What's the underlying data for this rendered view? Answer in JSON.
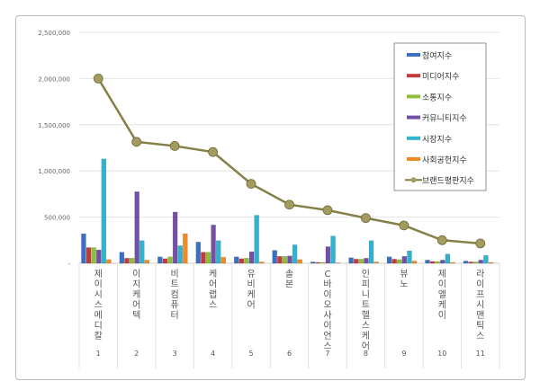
{
  "chart_data": {
    "type": "bar+line",
    "title": "",
    "categories": [
      "제이시스메디칼",
      "이지케어텍",
      "비트컴퓨터",
      "케어랩스",
      "유비케어",
      "솔본",
      "C바이오사이언스",
      "인피니트헬스케어",
      "뷰노",
      "제이엘케이",
      "라이프시맨틱스"
    ],
    "ranks": [
      "1",
      "2",
      "3",
      "4",
      "5",
      "6",
      "7",
      "8",
      "9",
      "10",
      "11"
    ],
    "ylim": [
      0,
      2500000
    ],
    "yticks": [
      0,
      500000,
      1000000,
      1500000,
      2000000,
      2500000
    ],
    "ytick_labels": [
      "-",
      "500,000",
      "1,000,000",
      "1,500,000",
      "2,000,000",
      "2,500,000"
    ],
    "grid": true,
    "legend_position": "top-right",
    "series": [
      {
        "name": "참여지수",
        "type": "bar",
        "color": "#3a6fc4",
        "values": [
          320000,
          120000,
          70000,
          230000,
          70000,
          140000,
          15000,
          60000,
          70000,
          35000,
          25000
        ]
      },
      {
        "name": "미디어지수",
        "type": "bar",
        "color": "#c43a3a",
        "values": [
          170000,
          55000,
          50000,
          120000,
          50000,
          75000,
          10000,
          45000,
          45000,
          20000,
          15000
        ]
      },
      {
        "name": "소통지수",
        "type": "bar",
        "color": "#8fbf3a",
        "values": [
          170000,
          55000,
          70000,
          120000,
          55000,
          75000,
          10000,
          45000,
          40000,
          20000,
          15000
        ]
      },
      {
        "name": "커뮤니티지수",
        "type": "bar",
        "color": "#7350a8",
        "values": [
          145000,
          775000,
          555000,
          415000,
          125000,
          80000,
          180000,
          55000,
          75000,
          35000,
          35000
        ]
      },
      {
        "name": "시장지수",
        "type": "bar",
        "color": "#2fb3cf",
        "values": [
          1130000,
          245000,
          190000,
          245000,
          520000,
          200000,
          295000,
          245000,
          135000,
          100000,
          85000
        ]
      },
      {
        "name": "사회공헌지수",
        "type": "bar",
        "color": "#f08a24",
        "values": [
          40000,
          35000,
          320000,
          65000,
          15000,
          40000,
          5000,
          15000,
          25000,
          10000,
          10000
        ]
      },
      {
        "name": "브랜드평판지수",
        "type": "line",
        "color": "#857f48",
        "values": [
          2000000,
          1315000,
          1270000,
          1205000,
          860000,
          635000,
          575000,
          490000,
          410000,
          250000,
          215000
        ]
      }
    ]
  }
}
